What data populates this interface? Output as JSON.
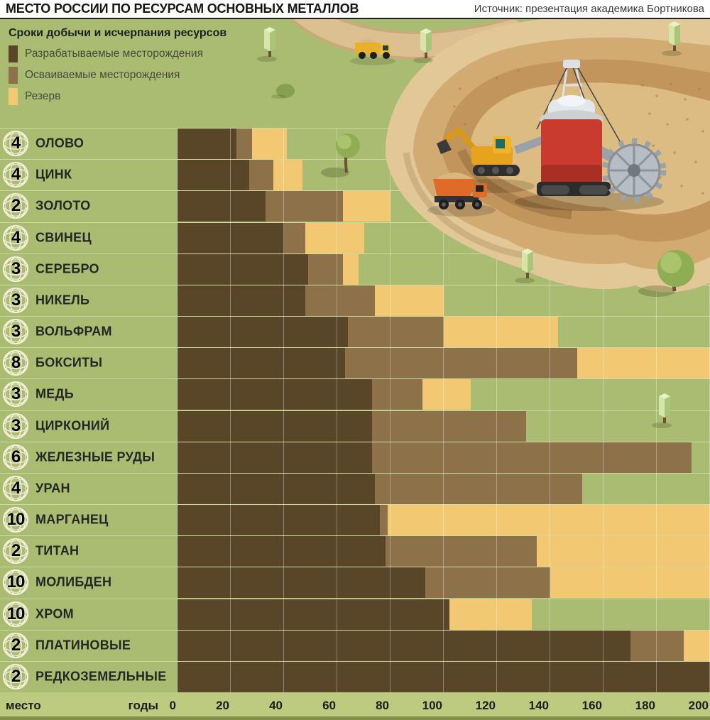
{
  "header": {
    "title": "МЕСТО РОССИИ ПО РЕСУРСАМ ОСНОВНЫХ МЕТАЛЛОВ",
    "source": "Источник: презентация академика Бортникова"
  },
  "legend": {
    "title": "Сроки добычи и исчерпания ресурсов",
    "items": [
      {
        "label": "Разрабатываемые месторождения",
        "color": "#594527"
      },
      {
        "label": "Осваиваемые месторождения",
        "color": "#8d7249"
      },
      {
        "label": "Резерв",
        "color": "#f2c873"
      }
    ]
  },
  "axis": {
    "left_label": "место",
    "right_label": "годы"
  },
  "colors": {
    "background_green": "#a9bc72",
    "axis_band_green": "#bccb80",
    "header_white": "#ffffff",
    "pit_tan": "#e3c897"
  },
  "chart_data": {
    "type": "bar",
    "orientation": "horizontal",
    "stacked": true,
    "title": "МЕСТО РОССИИ ПО РЕСУРСАМ ОСНОВНЫХ МЕТАЛЛОВ",
    "x_unit": "годы",
    "xlim": [
      0,
      200
    ],
    "x_ticks": [
      0,
      20,
      40,
      60,
      80,
      100,
      120,
      140,
      160,
      180,
      200
    ],
    "series": [
      "Разрабатываемые месторождения",
      "Осваиваемые месторождения",
      "Резерв"
    ],
    "rank_meaning": "место",
    "rows": [
      {
        "rank": 4,
        "metal": "ОЛОВО",
        "developed_until": 22,
        "developing_until": 28,
        "reserve_until": 41
      },
      {
        "rank": 4,
        "metal": "ЦИНК",
        "developed_until": 27,
        "developing_until": 36,
        "reserve_until": 47
      },
      {
        "rank": 2,
        "metal": "ЗОЛОТО",
        "developed_until": 33,
        "developing_until": 62,
        "reserve_until": 80
      },
      {
        "rank": 4,
        "metal": "СВИНЕЦ",
        "developed_until": 40,
        "developing_until": 48,
        "reserve_until": 70
      },
      {
        "rank": 3,
        "metal": "СЕРЕБРО",
        "developed_until": 49,
        "developing_until": 62,
        "reserve_until": 68
      },
      {
        "rank": 3,
        "metal": "НИКЕЛЬ",
        "developed_until": 48,
        "developing_until": 74,
        "reserve_until": 100
      },
      {
        "rank": 3,
        "metal": "ВОЛЬФРАМ",
        "developed_until": 64,
        "developing_until": 100,
        "reserve_until": 143
      },
      {
        "rank": 8,
        "metal": "БОКСИТЫ",
        "developed_until": 63,
        "developing_until": 150,
        "reserve_until": 200
      },
      {
        "rank": 3,
        "metal": "МЕДЬ",
        "developed_until": 73,
        "developing_until": 92,
        "reserve_until": 110
      },
      {
        "rank": 3,
        "metal": "ЦИРКОНИЙ",
        "developed_until": 73,
        "developing_until": 131,
        "reserve_until": null
      },
      {
        "rank": 6,
        "metal": "ЖЕЛЕЗНЫЕ РУДЫ",
        "developed_until": 73,
        "developing_until": 193,
        "reserve_until": null
      },
      {
        "rank": 4,
        "metal": "УРАН",
        "developed_until": 74,
        "developing_until": 152,
        "reserve_until": null
      },
      {
        "rank": 10,
        "metal": "МАРГАНЕЦ",
        "developed_until": 76,
        "developing_until": 79,
        "reserve_until": 200
      },
      {
        "rank": 2,
        "metal": "ТИТАН",
        "developed_until": 78,
        "developing_until": 135,
        "reserve_until": 200
      },
      {
        "rank": 10,
        "metal": "МОЛИБДЕН",
        "developed_until": 93,
        "developing_until": 140,
        "reserve_until": 200
      },
      {
        "rank": 10,
        "metal": "ХРОМ",
        "developed_until": 102,
        "developing_until": null,
        "reserve_until": 133
      },
      {
        "rank": 2,
        "metal": "ПЛАТИНОВЫЕ",
        "developed_until": 170,
        "developing_until": 190,
        "reserve_until": 200
      },
      {
        "rank": 2,
        "metal": "РЕДКОЗЕМЕЛЬНЫЕ",
        "developed_until": 200,
        "developing_until": null,
        "reserve_until": null
      }
    ]
  }
}
